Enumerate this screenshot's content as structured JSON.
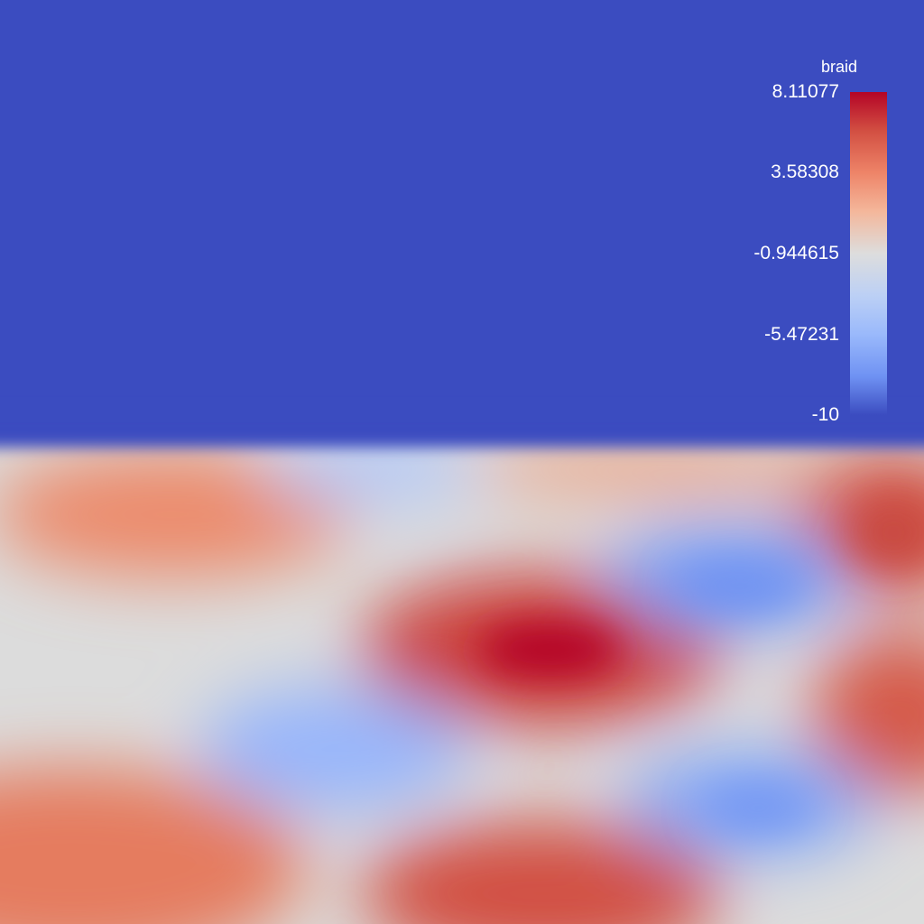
{
  "chart_data": {
    "type": "heatmap",
    "field_name": "braid",
    "colormap": "coolwarm",
    "range": [
      -10,
      8.11077
    ],
    "legend": {
      "title": "braid",
      "placement": "top-right",
      "ticks": [
        "8.11077",
        "3.58308",
        "-0.944615",
        "-5.47231",
        "-10"
      ],
      "tick_values": [
        8.11077,
        3.58308,
        -0.944615,
        -5.47231,
        -10
      ]
    },
    "background_value": -10,
    "colors": {
      "min": "#3b4cc0",
      "low": "#6f92f3",
      "mid": "#dddddd",
      "high": "#f08b6e",
      "max": "#b40426"
    }
  }
}
